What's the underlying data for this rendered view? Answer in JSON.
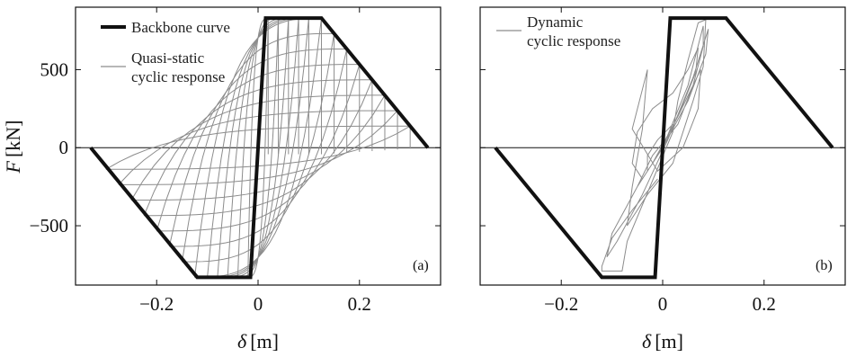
{
  "chart_data": [
    {
      "type": "line",
      "panel_label": "(a)",
      "xlabel_symbol": "δ",
      "xlabel_unit": "[m]",
      "ylabel_symbol": "F",
      "ylabel_unit": "[kN]",
      "xlim": [
        -0.36,
        0.36
      ],
      "ylim": [
        -880,
        900
      ],
      "x_ticks": [
        -0.2,
        0,
        0.2
      ],
      "x_tick_labels": [
        "−0.2",
        "0",
        "0.2"
      ],
      "y_ticks": [
        -500,
        0,
        500
      ],
      "y_tick_labels": [
        "−500",
        "0",
        "500"
      ],
      "zero_line": true,
      "legend_position": "top-left",
      "series": [
        {
          "name": "Backbone curve",
          "color": "#111111",
          "style": "thick",
          "x": [
            -0.33,
            -0.12,
            -0.015,
            0.015,
            0.125,
            0.335
          ],
          "y": [
            0,
            -830,
            -830,
            830,
            830,
            0
          ]
        },
        {
          "name": "Quasi-static cyclic response",
          "color": "#8c8c8c",
          "style": "thin",
          "generator": "quasi_static"
        }
      ]
    },
    {
      "type": "line",
      "panel_label": "(b)",
      "xlabel_symbol": "δ",
      "xlabel_unit": "[m]",
      "xlim": [
        -0.36,
        0.36
      ],
      "ylim": [
        -880,
        900
      ],
      "x_ticks": [
        -0.2,
        0,
        0.2
      ],
      "x_tick_labels": [
        "−0.2",
        "0",
        "0.2"
      ],
      "zero_line": true,
      "legend_position": "top-left",
      "series": [
        {
          "name": "",
          "color": "#111111",
          "style": "thick",
          "x": [
            -0.33,
            -0.12,
            -0.015,
            0.015,
            0.125,
            0.335
          ],
          "y": [
            0,
            -830,
            -830,
            830,
            830,
            0
          ]
        },
        {
          "name": "Dynamic cyclic response",
          "name_lines": [
            "Dynamic",
            "cyclic response"
          ],
          "color": "#8c8c8c",
          "style": "thin",
          "x": [
            -0.01,
            -0.06,
            -0.1,
            -0.12,
            -0.12,
            -0.08,
            -0.07,
            0.02,
            0.03,
            0.05,
            0.07,
            0.085,
            0.08,
            0.06,
            0.02,
            -0.03,
            -0.07,
            -0.06,
            -0.04,
            -0.03,
            -0.06,
            -0.01,
            0.04,
            0.07,
            0.075,
            0.03,
            -0.02,
            -0.05,
            -0.02,
            0.03,
            0.06,
            0.08,
            0.08,
            0.05,
            0.0,
            -0.05,
            -0.1,
            -0.11,
            -0.09,
            -0.04,
            0.01,
            0.06,
            0.09,
            0.085,
            0.05,
            0.0,
            -0.04,
            -0.06,
            -0.05,
            -0.02,
            0.02,
            0.05,
            0.07,
            0.065,
            0.03,
            -0.01,
            -0.03,
            -0.03,
            -0.01,
            0.02
          ],
          "y": [
            -200,
            -400,
            -580,
            -760,
            -790,
            -790,
            -600,
            100,
            300,
            560,
            800,
            820,
            520,
            300,
            -100,
            -300,
            -500,
            -250,
            120,
            500,
            120,
            -150,
            0,
            250,
            500,
            200,
            -100,
            -250,
            -50,
            150,
            400,
            650,
            780,
            400,
            0,
            -250,
            -550,
            -700,
            -600,
            -300,
            50,
            450,
            760,
            600,
            300,
            0,
            -200,
            -100,
            100,
            250,
            350,
            500,
            640,
            480,
            200,
            -50,
            -150,
            -50,
            50,
            150
          ]
        }
      ]
    }
  ]
}
